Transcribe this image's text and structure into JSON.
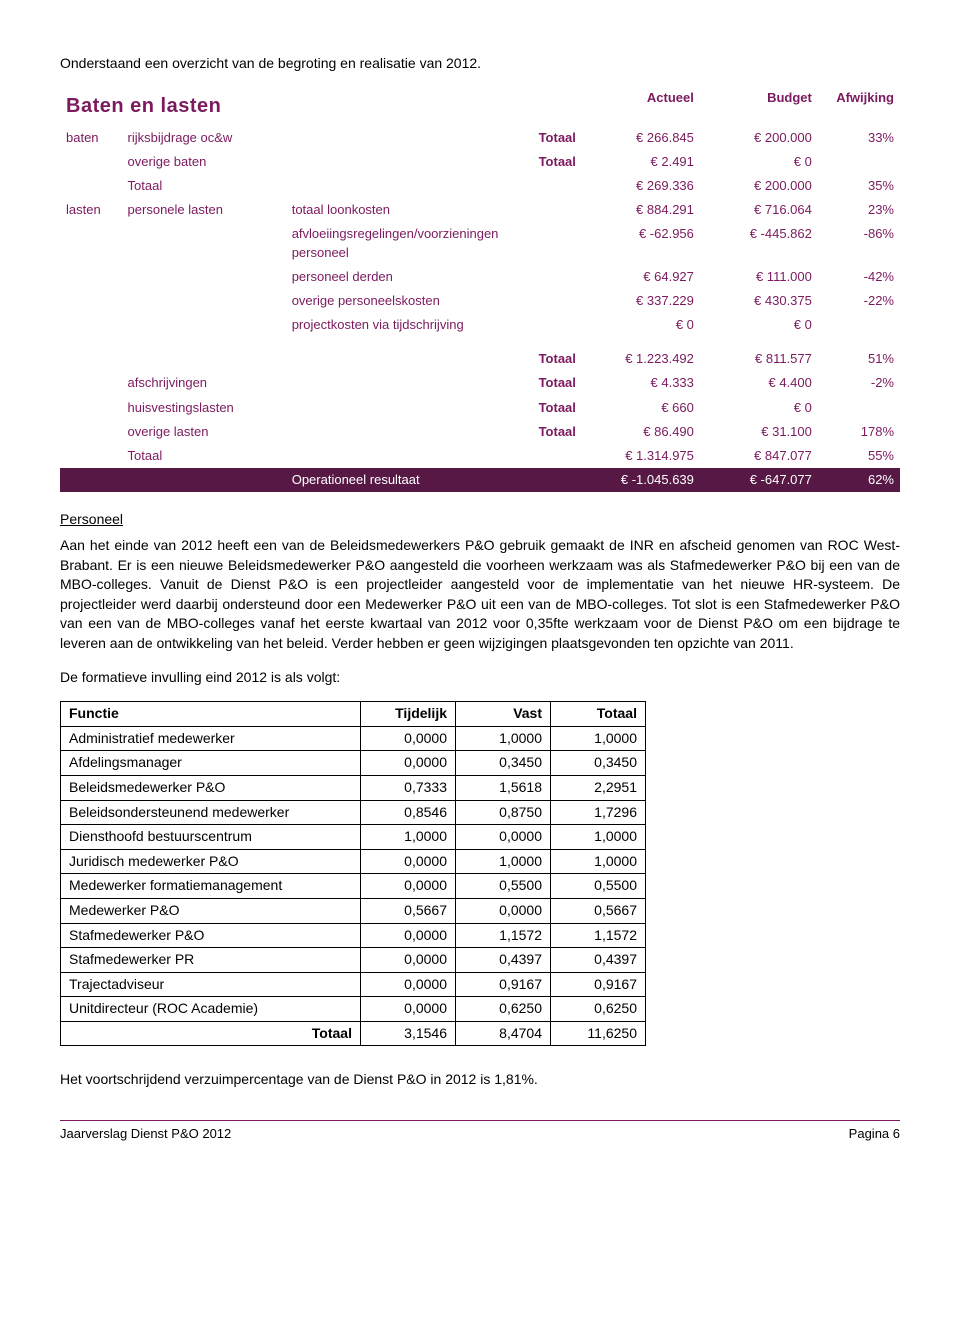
{
  "intro": "Onderstaand een overzicht van de begroting en realisatie van 2012.",
  "baten_title": "Baten en lasten",
  "headers": {
    "actueel": "Actueel",
    "budget": "Budget",
    "afwijking": "Afwijking"
  },
  "totaal_label": "Totaal",
  "op_resultaat": "Operationeel resultaat",
  "rows": {
    "baten": "baten",
    "lasten": "lasten",
    "r1": {
      "sub": "rijksbijdrage oc&w",
      "a": "€ 266.845",
      "b": "€ 200.000",
      "p": "33%"
    },
    "r2": {
      "sub": "overige baten",
      "a": "€ 2.491",
      "b": "€ 0",
      "p": ""
    },
    "r3": {
      "sub": "Totaal",
      "a": "€ 269.336",
      "b": "€ 200.000",
      "p": "35%"
    },
    "r4": {
      "sub": "personele lasten",
      "desc": "totaal loonkosten",
      "a": "€ 884.291",
      "b": "€ 716.064",
      "p": "23%"
    },
    "r5": {
      "desc": "afvloeiingsregelingen/voorzieningen personeel",
      "a": "€ -62.956",
      "b": "€ -445.862",
      "p": "-86%"
    },
    "r6": {
      "desc": "personeel derden",
      "a": "€ 64.927",
      "b": "€ 111.000",
      "p": "-42%"
    },
    "r7": {
      "desc": "overige personeelskosten",
      "a": "€ 337.229",
      "b": "€ 430.375",
      "p": "-22%"
    },
    "r8": {
      "desc": "projectkosten via tijdschrijving",
      "a": "€ 0",
      "b": "€ 0",
      "p": ""
    },
    "r9": {
      "a": "€ 1.223.492",
      "b": "€ 811.577",
      "p": "51%"
    },
    "r10": {
      "sub": "afschrijvingen",
      "a": "€ 4.333",
      "b": "€ 4.400",
      "p": "-2%"
    },
    "r11": {
      "sub": "huisvestingslasten",
      "a": "€ 660",
      "b": "€ 0",
      "p": ""
    },
    "r12": {
      "sub": "overige lasten",
      "a": "€ 86.490",
      "b": "€ 31.100",
      "p": "178%"
    },
    "r13": {
      "sub": "Totaal",
      "a": "€ 1.314.975",
      "b": "€ 847.077",
      "p": "55%"
    },
    "r14": {
      "a": "€ -1.045.639",
      "b": "€ -647.077",
      "p": "62%"
    }
  },
  "personeel_hdr": "Personeel",
  "personeel_body": "Aan het einde van 2012 heeft een van de Beleidsmedewerkers P&O gebruik gemaakt de INR en afscheid genomen van ROC West-Brabant. Er is een nieuwe Beleidsmedewerker P&O aangesteld die voorheen werkzaam was als Stafmedewerker P&O bij een van de MBO-colleges. Vanuit de Dienst P&O is een projectleider aangesteld voor de implementatie van het nieuwe HR-systeem. De projectleider werd daarbij ondersteund door een Medewerker P&O uit een van de MBO-colleges. Tot slot is een Stafmedewerker P&O van een van de MBO-colleges vanaf het eerste kwartaal van 2012 voor 0,35fte werkzaam voor de Dienst P&O om een bijdrage te leveren aan de ontwikkeling van het beleid. Verder hebben er geen wijzigingen plaatsgevonden ten opzichte van 2011.",
  "formatieve_intro": "De formatieve invulling eind 2012 is als volgt:",
  "functie_hdr": {
    "f": "Functie",
    "t": "Tijdelijk",
    "v": "Vast",
    "tot": "Totaal"
  },
  "functie_rows": [
    {
      "f": "Administratief medewerker",
      "t": "0,0000",
      "v": "1,0000",
      "tot": "1,0000"
    },
    {
      "f": "Afdelingsmanager",
      "t": "0,0000",
      "v": "0,3450",
      "tot": "0,3450"
    },
    {
      "f": "Beleidsmedewerker P&O",
      "t": "0,7333",
      "v": "1,5618",
      "tot": "2,2951"
    },
    {
      "f": "Beleidsondersteunend medewerker",
      "t": "0,8546",
      "v": "0,8750",
      "tot": "1,7296"
    },
    {
      "f": "Diensthoofd bestuurscentrum",
      "t": "1,0000",
      "v": "0,0000",
      "tot": "1,0000"
    },
    {
      "f": "Juridisch medewerker P&O",
      "t": "0,0000",
      "v": "1,0000",
      "tot": "1,0000"
    },
    {
      "f": "Medewerker formatiemanagement",
      "t": "0,0000",
      "v": "0,5500",
      "tot": "0,5500"
    },
    {
      "f": "Medewerker P&O",
      "t": "0,5667",
      "v": "0,0000",
      "tot": "0,5667"
    },
    {
      "f": "Stafmedewerker P&O",
      "t": "0,0000",
      "v": "1,1572",
      "tot": "1,1572"
    },
    {
      "f": "Stafmedewerker PR",
      "t": "0,0000",
      "v": "0,4397",
      "tot": "0,4397"
    },
    {
      "f": "Trajectadviseur",
      "t": "0,0000",
      "v": "0,9167",
      "tot": "0,9167"
    },
    {
      "f": "Unitdirecteur (ROC Academie)",
      "t": "0,0000",
      "v": "0,6250",
      "tot": "0,6250"
    }
  ],
  "functie_totaal": {
    "label": "Totaal",
    "t": "3,1546",
    "v": "8,4704",
    "tot": "11,6250"
  },
  "verzuim": "Het voortschrijdend verzuimpercentage van de Dienst P&O in 2012 is 1,81%.",
  "footer_left": "Jaarverslag Dienst P&O 2012",
  "footer_right": "Pagina 6"
}
